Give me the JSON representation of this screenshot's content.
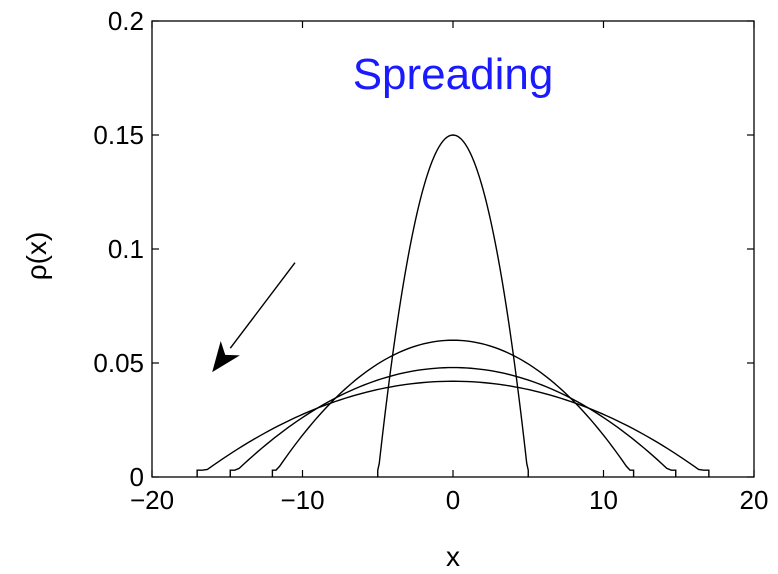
{
  "chart_data": {
    "type": "line",
    "title": "Spreading",
    "title_color": "#1a1aff",
    "xlabel": "x",
    "ylabel": "ρ(x)",
    "xlim": [
      -20,
      20
    ],
    "ylim": [
      0,
      0.2
    ],
    "xticks": [
      -20,
      -10,
      0,
      10,
      20
    ],
    "xtick_labels": [
      "−20",
      "−10",
      "0",
      "10",
      "20"
    ],
    "yticks": [
      0,
      0.05,
      0.1,
      0.15,
      0.2
    ],
    "ytick_labels": [
      "0",
      "0.05",
      "0.1",
      "0.15",
      "0.2"
    ],
    "grid": false,
    "legend": false,
    "line_color": "#000000",
    "series": [
      {
        "peak": 0.15,
        "half_width": 5.0
      },
      {
        "peak": 0.06,
        "half_width": 12.0
      },
      {
        "peak": 0.048,
        "half_width": 14.8
      },
      {
        "peak": 0.042,
        "half_width": 17.0
      }
    ],
    "annotation": {
      "type": "arrow",
      "from": [
        -10.5,
        0.094
      ],
      "to": [
        -16,
        0.046
      ],
      "direction": "toward later, wider curves"
    }
  }
}
